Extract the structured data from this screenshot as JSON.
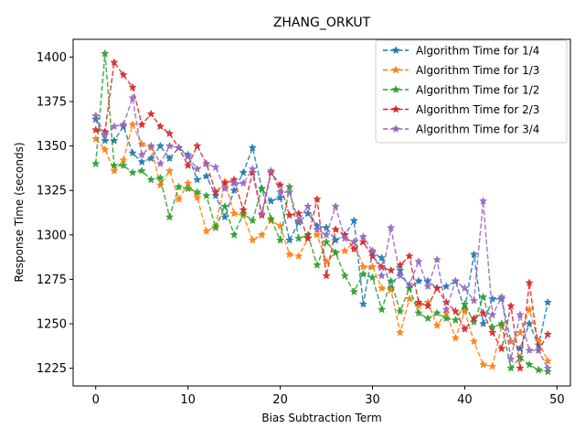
{
  "chart_data": {
    "type": "line",
    "title": "ZHANG_ORKUT",
    "xlabel": "Bias Subtraction Term",
    "ylabel": "Response Time (seconds)",
    "xlim": [
      -2.45,
      51.45
    ],
    "ylim": [
      1215,
      1410
    ],
    "xticks": [
      0,
      10,
      20,
      30,
      40,
      50
    ],
    "yticks": [
      1225,
      1250,
      1275,
      1300,
      1325,
      1350,
      1375,
      1400
    ],
    "grid": false,
    "legend_position": "top-right",
    "marker": "star",
    "line_style": "dashed",
    "x": [
      0,
      1,
      2,
      3,
      4,
      5,
      6,
      7,
      8,
      9,
      10,
      11,
      12,
      13,
      14,
      15,
      16,
      17,
      18,
      19,
      20,
      21,
      22,
      23,
      24,
      25,
      26,
      27,
      28,
      29,
      30,
      31,
      32,
      33,
      34,
      35,
      36,
      37,
      38,
      39,
      40,
      41,
      42,
      43,
      44,
      45,
      46,
      47,
      48,
      49
    ],
    "series": [
      {
        "name": "Algorithm Time for 1/4",
        "color": "#1f77b4",
        "values": [
          1365,
          1353,
          1353,
          1361,
          1346,
          1341,
          1343,
          1350,
          1343,
          1349,
          1345,
          1331,
          1333,
          1322,
          1310,
          1325,
          1335,
          1349,
          1326,
          1319,
          1321,
          1297,
          1307,
          1312,
          1305,
          1304,
          1297,
          1300,
          1308,
          1261,
          1290,
          1287,
          1270,
          1280,
          1270,
          1274,
          1274,
          1270,
          1271,
          1274,
          1258,
          1289,
          1250,
          1264,
          1264,
          1240,
          1236,
          1250,
          1238,
          1262
        ]
      },
      {
        "name": "Algorithm Time for 1/3",
        "color": "#ff7f0e",
        "values": [
          1354,
          1348,
          1336,
          1342,
          1362,
          1351,
          1349,
          1328,
          1336,
          1320,
          1329,
          1321,
          1302,
          1305,
          1330,
          1312,
          1311,
          1297,
          1300,
          1308,
          1305,
          1289,
          1288,
          1298,
          1300,
          1285,
          1290,
          1291,
          1296,
          1282,
          1282,
          1270,
          1269,
          1245,
          1264,
          1260,
          1262,
          1249,
          1256,
          1242,
          1257,
          1240,
          1227,
          1226,
          1249,
          1240,
          1245,
          1258,
          1240,
          1229
        ]
      },
      {
        "name": "Algorithm Time for 1/2",
        "color": "#2ca02c",
        "values": [
          1340,
          1402,
          1339,
          1339,
          1335,
          1336,
          1331,
          1332,
          1310,
          1327,
          1326,
          1324,
          1322,
          1304,
          1316,
          1300,
          1312,
          1308,
          1326,
          1309,
          1297,
          1327,
          1298,
          1300,
          1283,
          1296,
          1290,
          1277,
          1268,
          1278,
          1276,
          1258,
          1274,
          1257,
          1270,
          1256,
          1253,
          1256,
          1253,
          1252,
          1261,
          1251,
          1265,
          1248,
          1250,
          1225,
          1231,
          1227,
          1224,
          1223
        ]
      },
      {
        "name": "Algorithm Time for 2/3",
        "color": "#d62728",
        "values": [
          1359,
          1358,
          1397,
          1390,
          1383,
          1362,
          1368,
          1361,
          1357,
          1349,
          1339,
          1350,
          1340,
          1324,
          1329,
          1331,
          1314,
          1335,
          1311,
          1335,
          1328,
          1311,
          1312,
          1298,
          1320,
          1277,
          1303,
          1300,
          1292,
          1296,
          1288,
          1282,
          1280,
          1283,
          1288,
          1262,
          1260,
          1270,
          1262,
          1257,
          1247,
          1253,
          1256,
          1245,
          1236,
          1260,
          1225,
          1273,
          1235,
          1244
        ]
      },
      {
        "name": "Algorithm Time for 3/4",
        "color": "#9467bd",
        "values": [
          1367,
          1356,
          1361,
          1362,
          1377,
          1345,
          1350,
          1340,
          1350,
          1349,
          1344,
          1337,
          1340,
          1338,
          1326,
          1329,
          1329,
          1337,
          1312,
          1336,
          1324,
          1324,
          1308,
          1316,
          1303,
          1300,
          1316,
          1298,
          1296,
          1299,
          1291,
          1277,
          1304,
          1277,
          1272,
          1285,
          1271,
          1286,
          1258,
          1274,
          1270,
          1263,
          1319,
          1255,
          1265,
          1230,
          1255,
          1235,
          1235,
          1225
        ]
      }
    ]
  }
}
